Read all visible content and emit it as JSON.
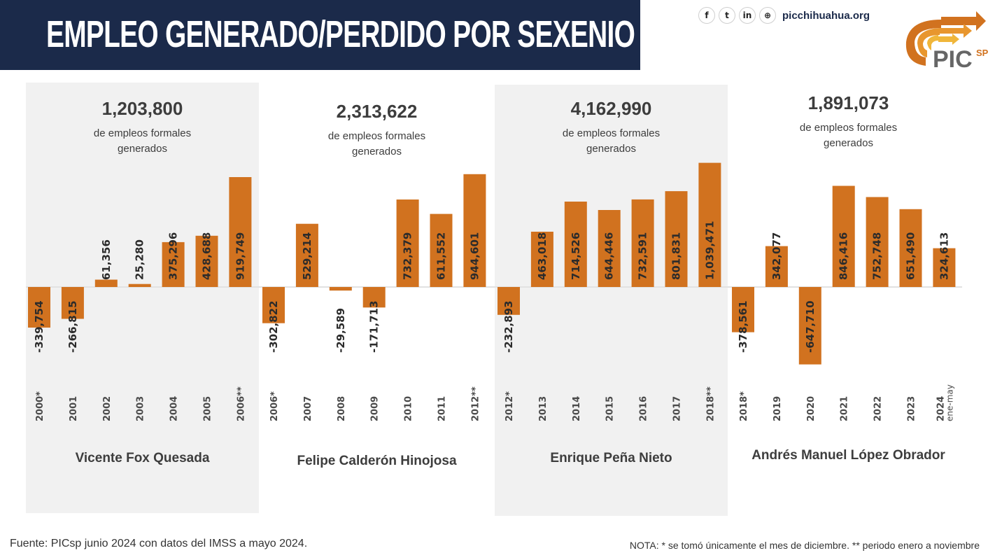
{
  "header": {
    "title": "EMPLEO GENERADO/PERDIDO POR SEXENIO",
    "social_icons": [
      "facebook-icon",
      "twitter-icon",
      "linkedin-icon",
      "globe-icon"
    ],
    "social_glyphs": [
      "f",
      "t",
      "in",
      "⊕"
    ],
    "website": "picchihuahua.org",
    "logo_text": "PIC",
    "logo_sub": "SP"
  },
  "colors": {
    "bar": "#d1721f",
    "title_bg": "#1b2a4a",
    "panel_gray": "#f1f1f1",
    "zero_line": "#e2e2e2"
  },
  "chart_data": {
    "type": "bar",
    "title": "EMPLEO GENERADO/PERDIDO POR SEXENIO",
    "xlabel": "",
    "ylabel": "",
    "grid": false,
    "panels": [
      {
        "president": "Vicente Fox Quesada",
        "total": "1,203,800",
        "subtitle_line1": "de empleos formales",
        "subtitle_line2": "generados",
        "categories": [
          "2000*",
          "2001",
          "2002",
          "2003",
          "2004",
          "2005",
          "2006**"
        ],
        "values": [
          -339754,
          -266815,
          61356,
          25280,
          375296,
          428688,
          919749
        ],
        "labels": [
          "-339,754",
          "-266,815",
          "61,356",
          "25,280",
          "375,296",
          "428,688",
          "919,749"
        ]
      },
      {
        "president": "Felipe Calderón Hinojosa",
        "total": "2,313,622",
        "subtitle_line1": "de empleos formales",
        "subtitle_line2": "generados",
        "categories": [
          "2006*",
          "2007",
          "2008",
          "2009",
          "2010",
          "2011",
          "2012**"
        ],
        "values": [
          -302822,
          529214,
          -29589,
          -171713,
          732379,
          611552,
          944601
        ],
        "labels": [
          "-302,822",
          "529,214",
          "-29,589",
          "-171,713",
          "732,379",
          "611,552",
          "944,601"
        ]
      },
      {
        "president": "Enrique Peña Nieto",
        "total": "4,162,990",
        "subtitle_line1": "de empleos formales",
        "subtitle_line2": "generados",
        "categories": [
          "2012*",
          "2013",
          "2014",
          "2015",
          "2016",
          "2017",
          "2018**"
        ],
        "values": [
          -232893,
          463018,
          714526,
          644446,
          732591,
          801831,
          1039471
        ],
        "labels": [
          "-232,893",
          "463,018",
          "714,526",
          "644,446",
          "732,591",
          "801,831",
          "1,039,471"
        ]
      },
      {
        "president": "Andrés Manuel López Obrador",
        "total": "1,891,073",
        "subtitle_line1": "de empleos formales",
        "subtitle_line2": "generados",
        "categories": [
          "2018*",
          "2019",
          "2020",
          "2021",
          "2022",
          "2023",
          "2024 ene-may"
        ],
        "values": [
          -378561,
          342077,
          -647710,
          846416,
          752748,
          651490,
          324613
        ],
        "labels": [
          "-378,561",
          "342,077",
          "-647,710",
          "846,416",
          "752,748",
          "651,490",
          "324,613"
        ]
      }
    ]
  },
  "footer": {
    "source": "Fuente: PICsp junio 2024 con datos del IMSS a mayo 2024.",
    "note": "NOTA:  * se tomó únicamente el mes de diciembre.  ** periodo enero a noviembre"
  }
}
